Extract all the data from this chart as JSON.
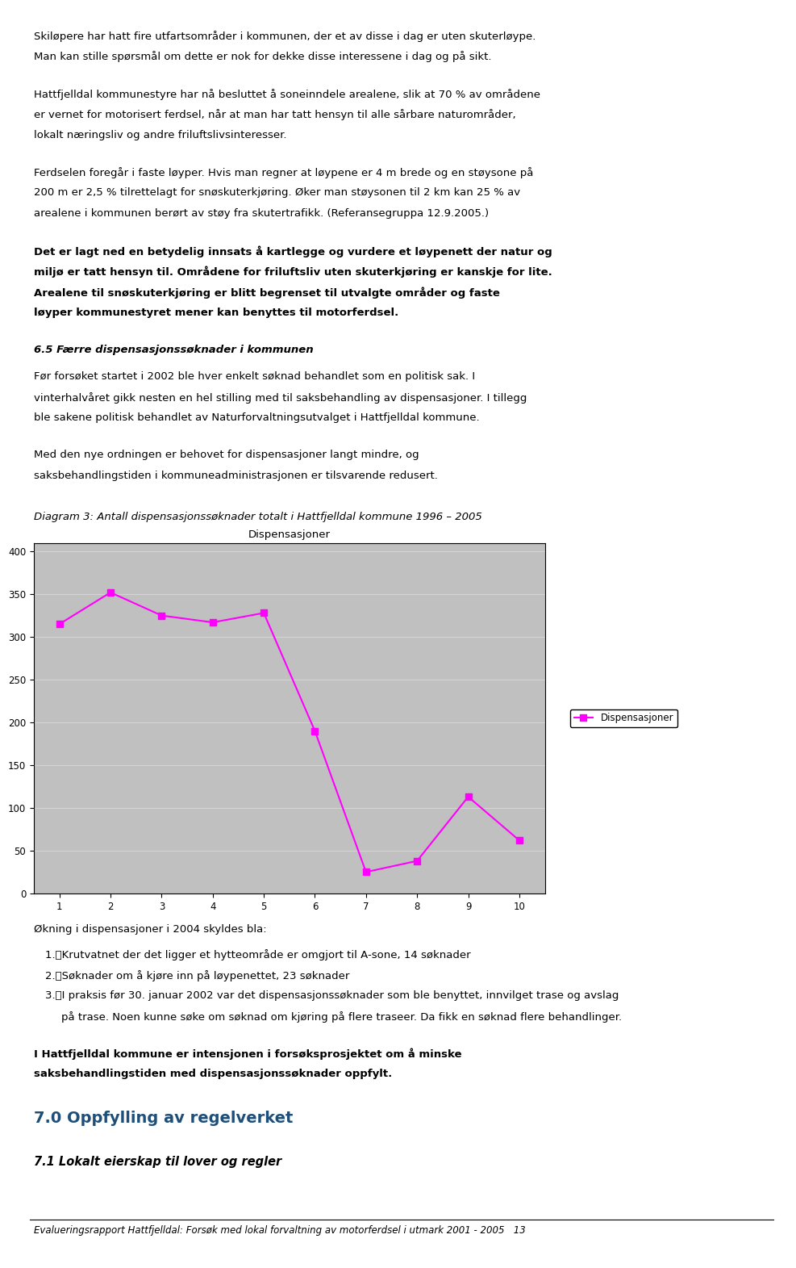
{
  "page_width": 9.6,
  "page_height": 15.51,
  "background_color": "#ffffff",
  "text_color": "#000000",
  "para1": "Skiløpere har hatt fire utfartsområder i kommunen, der et av disse i dag er uten skuterløype.\nMan kan stille spørsmål om dette er nok for dekke disse interessene i dag og på sikt.",
  "para2": "Hattfjelldal kommunestyre har nå besluttet å soneinndele arealene, slik at 70 % av områdene\ner vernet for motorisert ferdsel, når at man har tatt hensyn til alle sårbare naturområder,\nlokalt næringsliv og andre friluftslivsinteresser.",
  "para3": "Ferdselen foregår i faste løyper. Hvis man regner at løypene er 4 m brede og en støysone på\n200 m er 2,5 % tilrettelagt for snøskuterkjøring. Øker man støysonen til 2 km kan 25 % av\narealene i kommunen berørt av støy fra skutertrafikk. (Referansegruppa 12.9.2005.)",
  "para4_bold": "Det er lagt ned en betydelig innsats å kartlegge og vurdere et løypenett der natur og\nmiljø er tatt hensyn til. Områdene for friluftsliv uten skuterkjøring er kanskje for lite.\nArealene til snøskuterkjøring er blitt begrenset til utvalgte områder og faste\nløyper kommunestyret mener kan benyttes til motorferdsel.",
  "section_title": "6.5 Færre dispensasjonssøknader i kommunen",
  "para5": "Før forsøket startet i 2002 ble hver enkelt søknad behandlet som en politisk sak. I\nvinterhalvåret gikk nesten en hel stilling med til saksbehandling av dispensasjoner. I tillegg\nble sakene politisk behandlet av Naturforvaltningsutvalget i Hattfjelldal kommune.",
  "para6": "Med den nye ordningen er behovet for dispensasjoner langt mindre, og\nsaksbehandlingstiden i kommuneadministrasjonen er tilsvarende redusert.",
  "diagram_caption": "Diagram 3: Antall dispensasjonssøknader totalt i Hattfjelldal kommune 1996 – 2005",
  "chart_title": "Dispensasjoner",
  "chart_bg": "#c0c0c0",
  "chart_border": "#000000",
  "line_color": "#ff00ff",
  "marker_color": "#ff00ff",
  "legend_label": "Dispensasjoner",
  "x_values": [
    1,
    2,
    3,
    4,
    5,
    6,
    7,
    8,
    9,
    10
  ],
  "y_values": [
    315,
    352,
    325,
    317,
    328,
    190,
    25,
    38,
    113,
    62
  ],
  "y_ticks": [
    0,
    50,
    100,
    150,
    200,
    250,
    300,
    350,
    400
  ],
  "x_ticks": [
    1,
    2,
    3,
    4,
    5,
    6,
    7,
    8,
    9,
    10
  ],
  "y_lim": [
    0,
    410
  ],
  "x_lim": [
    0.5,
    10.5
  ],
  "note_title": "Økning i dispensasjoner i 2004 skyldes bla:",
  "note_items": [
    "Krutvatnet der det ligger et hytteområde er omgjort til A-sone, 14 søknader",
    "Søknader om å kjøre inn på løypenettet, 23 søknader",
    "I praksis før 30. januar 2002 var det dispensasjonssøknader som ble benyttet, innvilget trase og avslag\npå trase. Noen kunne søke om søknad om kjøring på flere traseer. Da fikk en søknad flere behandlinger."
  ],
  "bold_para": "I Hattfjelldal kommune er intensjonen i forsøksprosjektet om å minske\nsaksbehandlingstiden med dispensasjonssøknader oppfylt.",
  "section2_title": "7.0 Oppfylling av regelverket",
  "section2_subtitle": "7.1 Lokalt eierskap til lover og regler",
  "footer": "Evalueringsrapport Hattfjelldal: Forsøk med lokal forvaltning av motorferdsel i utmark 2001 - 2005   13"
}
